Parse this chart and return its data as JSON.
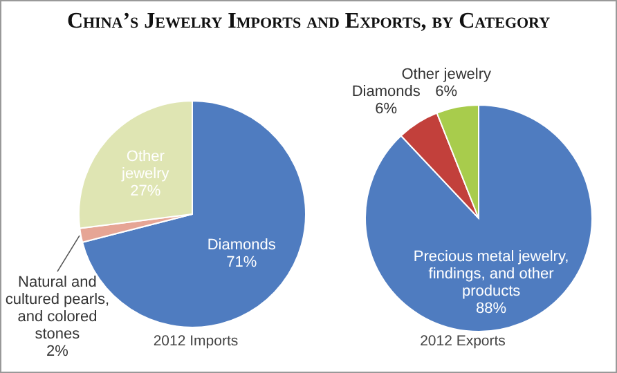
{
  "chart_data": [
    {
      "type": "pie",
      "title": "China’s Jewelry Imports and Exports, by Category",
      "xlabel": "2012 Imports",
      "categories": [
        "Diamonds",
        "Natural and cultured pearls, and colored stones",
        "Other jewelry"
      ],
      "values": [
        71,
        2,
        27
      ],
      "value_labels": [
        "71%",
        "2%",
        "27%"
      ],
      "colors": [
        "#4f7cc0",
        "#e6a595",
        "#dfe5b3"
      ]
    },
    {
      "type": "pie",
      "xlabel": "2012 Exports",
      "categories": [
        "Precious metal jewelry, findings, and other products",
        "Diamonds",
        "Other jewelry"
      ],
      "values": [
        88,
        6,
        6
      ],
      "value_labels": [
        "88%",
        "6%",
        "6%"
      ],
      "colors": [
        "#4f7cc0",
        "#c2403b",
        "#a8cc4c"
      ]
    }
  ]
}
